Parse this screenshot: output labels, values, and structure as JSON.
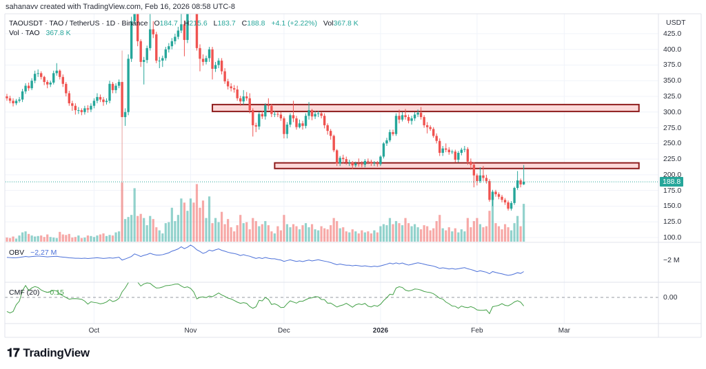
{
  "header": {
    "credit": "sahanavv created with TradingView.com, Feb 16, 2026 08:58 UTC-8"
  },
  "legend": {
    "symbol": "TAOUSDT · TAO / TetherUS · 1D · Binance",
    "o_label": "O",
    "o": "184.7",
    "h_label": "H",
    "h": "215.6",
    "l_label": "L",
    "l": "183.7",
    "c_label": "C",
    "c": "188.8",
    "change": "+4.1 (+2.22%)",
    "vol_label": "Vol",
    "vol": "367.8 K",
    "vol_series_label": "Vol · TAO",
    "vol_series_value": "367.8 K"
  },
  "indicators": {
    "obv_label": "OBV",
    "obv_value": "−2.27 M",
    "obv_axis_label": "−2 M",
    "cmf_label": "CMF (20)",
    "cmf_value": "−0.15",
    "cmf_axis_label": "0.00"
  },
  "logo": {
    "text": "TradingView"
  },
  "colors": {
    "up": "#26a69a",
    "down": "#ef5350",
    "obv": "#4a6fd8",
    "cmf": "#43a047",
    "zone_fill": "#fcd9d9",
    "zone_border": "#8e1b1b"
  },
  "chart_data": {
    "type": "candlestick",
    "interval": "1D",
    "x_start": "2025-09-03",
    "currency": "USDT",
    "last_price": "188.8",
    "ylim": [
      100,
      457
    ],
    "y_ticks": [
      "425.0",
      "400.0",
      "375.0",
      "350.0",
      "325.0",
      "300.0",
      "275.0",
      "250.0",
      "225.0",
      "200.0",
      "175.0",
      "150.0",
      "125.0",
      "100.0"
    ],
    "x_ticks": [
      {
        "label": "Oct",
        "date": "2025-10-01",
        "bold": false
      },
      {
        "label": "Nov",
        "date": "2025-11-01",
        "bold": false
      },
      {
        "label": "Dec",
        "date": "2025-12-01",
        "bold": false
      },
      {
        "label": "2026",
        "date": "2026-01-01",
        "bold": true
      },
      {
        "label": "Feb",
        "date": "2026-02-01",
        "bold": false
      },
      {
        "label": "Mar",
        "date": "2026-03-01",
        "bold": false
      }
    ],
    "first_open": 325,
    "close": [
      322,
      318,
      314,
      318,
      320,
      333,
      342,
      338,
      350,
      361,
      362,
      356,
      348,
      344,
      347,
      362,
      366,
      356,
      345,
      330,
      314,
      310,
      303,
      303,
      300,
      306,
      304,
      310,
      318,
      324,
      320,
      316,
      318,
      345,
      335,
      342,
      348,
      292,
      300,
      385,
      445,
      475,
      413,
      380,
      383,
      402,
      432,
      424,
      382,
      382,
      386,
      400,
      405,
      413,
      420,
      430,
      440,
      415,
      470,
      485,
      478,
      402,
      385,
      380,
      386,
      400,
      369,
      375,
      382,
      365,
      349,
      341,
      338,
      336,
      322,
      317,
      325,
      322,
      303,
      279,
      277,
      297,
      293,
      311,
      310,
      297,
      297,
      296,
      290,
      265,
      280,
      295,
      290,
      276,
      282,
      278,
      294,
      303,
      293,
      297,
      298,
      294,
      279,
      270,
      262,
      239,
      218,
      227,
      225,
      220,
      220,
      215,
      218,
      217,
      216,
      222,
      221,
      218,
      219,
      217,
      229,
      250,
      255,
      268,
      265,
      294,
      288,
      295,
      292,
      286,
      290,
      296,
      299,
      292,
      279,
      276,
      273,
      262,
      254,
      235,
      242,
      240,
      236,
      237,
      224,
      235,
      240,
      241,
      221,
      216,
      199,
      190,
      199,
      195,
      190,
      160,
      173,
      169,
      165,
      160,
      156,
      146,
      155,
      179,
      191,
      184.7,
      188.8
    ],
    "high": [
      329,
      326,
      322,
      321,
      324,
      337,
      346,
      347,
      354,
      366,
      368,
      365,
      358,
      351,
      350,
      366,
      378,
      368,
      360,
      348,
      334,
      318,
      314,
      308,
      306,
      310,
      311,
      314,
      322,
      330,
      328,
      324,
      322,
      350,
      348,
      346,
      352,
      398,
      306,
      392,
      452,
      490,
      480,
      416,
      388,
      406,
      462,
      445,
      428,
      388,
      390,
      404,
      410,
      418,
      425,
      436,
      460,
      446,
      480,
      498,
      495,
      485,
      408,
      392,
      390,
      404,
      404,
      380,
      386,
      386,
      370,
      353,
      346,
      343,
      342,
      326,
      335,
      332,
      330,
      306,
      283,
      300,
      302,
      314,
      322,
      313,
      302,
      300,
      300,
      293,
      284,
      298,
      318,
      294,
      288,
      286,
      298,
      316,
      305,
      302,
      302,
      300,
      298,
      282,
      273,
      264,
      241,
      230,
      232,
      229,
      224,
      222,
      221,
      226,
      222,
      225,
      226,
      224,
      222,
      222,
      231,
      252,
      259,
      272,
      272,
      298,
      304,
      300,
      305,
      296,
      294,
      300,
      304,
      308,
      295,
      284,
      279,
      276,
      266,
      258,
      246,
      250,
      244,
      240,
      240,
      238,
      243,
      246,
      244,
      226,
      220,
      202,
      212,
      214,
      200,
      193,
      176,
      176,
      172,
      168,
      163,
      159,
      158,
      181,
      206,
      194,
      215.6
    ],
    "low": [
      318,
      314,
      309,
      311,
      315,
      316,
      329,
      334,
      335,
      346,
      356,
      352,
      343,
      338,
      340,
      344,
      358,
      352,
      340,
      325,
      310,
      302,
      296,
      297,
      295,
      296,
      299,
      300,
      306,
      314,
      316,
      310,
      312,
      314,
      330,
      330,
      338,
      102,
      278,
      295,
      380,
      440,
      405,
      372,
      344,
      378,
      398,
      418,
      378,
      370,
      372,
      382,
      395,
      400,
      408,
      416,
      426,
      389,
      410,
      465,
      470,
      398,
      365,
      374,
      376,
      380,
      352,
      364,
      370,
      360,
      345,
      336,
      333,
      331,
      318,
      310,
      312,
      318,
      298,
      261,
      268,
      272,
      289,
      288,
      304,
      292,
      292,
      292,
      286,
      258,
      258,
      276,
      284,
      272,
      274,
      272,
      274,
      288,
      287,
      289,
      292,
      290,
      274,
      264,
      256,
      236,
      214,
      214,
      218,
      216,
      214,
      209,
      212,
      213,
      212,
      212,
      217,
      214,
      214,
      213,
      214,
      226,
      246,
      252,
      262,
      262,
      282,
      285,
      288,
      282,
      280,
      286,
      292,
      288,
      275,
      266,
      270,
      259,
      250,
      230,
      230,
      236,
      232,
      233,
      220,
      220,
      231,
      236,
      216,
      208,
      180,
      183,
      187,
      190,
      186,
      157,
      150,
      165,
      161,
      156,
      152,
      143,
      143,
      152,
      176,
      180,
      183.7
    ],
    "volume_k": [
      40,
      35,
      50,
      30,
      60,
      90,
      100,
      75,
      60,
      50,
      55,
      60,
      45,
      70,
      45,
      40,
      35,
      95,
      70,
      65,
      75,
      40,
      45,
      60,
      35,
      40,
      60,
      55,
      45,
      60,
      70,
      80,
      55,
      65,
      60,
      90,
      100,
      575,
      220,
      240,
      260,
      520,
      250,
      270,
      230,
      160,
      250,
      220,
      140,
      110,
      80,
      180,
      190,
      330,
      200,
      260,
      420,
      380,
      300,
      420,
      380,
      560,
      330,
      400,
      230,
      440,
      180,
      230,
      190,
      290,
      170,
      220,
      140,
      100,
      160,
      260,
      180,
      190,
      120,
      230,
      200,
      150,
      170,
      200,
      160,
      100,
      80,
      150,
      110,
      260,
      170,
      140,
      170,
      150,
      120,
      160,
      180,
      140,
      170,
      120,
      110,
      150,
      130,
      120,
      160,
      230,
      200,
      130,
      140,
      100,
      90,
      120,
      100,
      80,
      110,
      90,
      100,
      80,
      110,
      90,
      150,
      170,
      160,
      230,
      170,
      200,
      180,
      160,
      230,
      180,
      150,
      170,
      140,
      120,
      160,
      150,
      110,
      130,
      200,
      260,
      130,
      110,
      140,
      100,
      130,
      90,
      120,
      100,
      230,
      140,
      200,
      230,
      170,
      140,
      150,
      300,
      430,
      180,
      150,
      120,
      170,
      140,
      110,
      180,
      250,
      150,
      367.8
    ],
    "zones": [
      {
        "low": 301,
        "high": 312,
        "start": "2025-11-08",
        "end": "2026-03-25"
      },
      {
        "low": 210,
        "high": 219,
        "start": "2025-11-28",
        "end": "2026-03-25"
      }
    ]
  }
}
